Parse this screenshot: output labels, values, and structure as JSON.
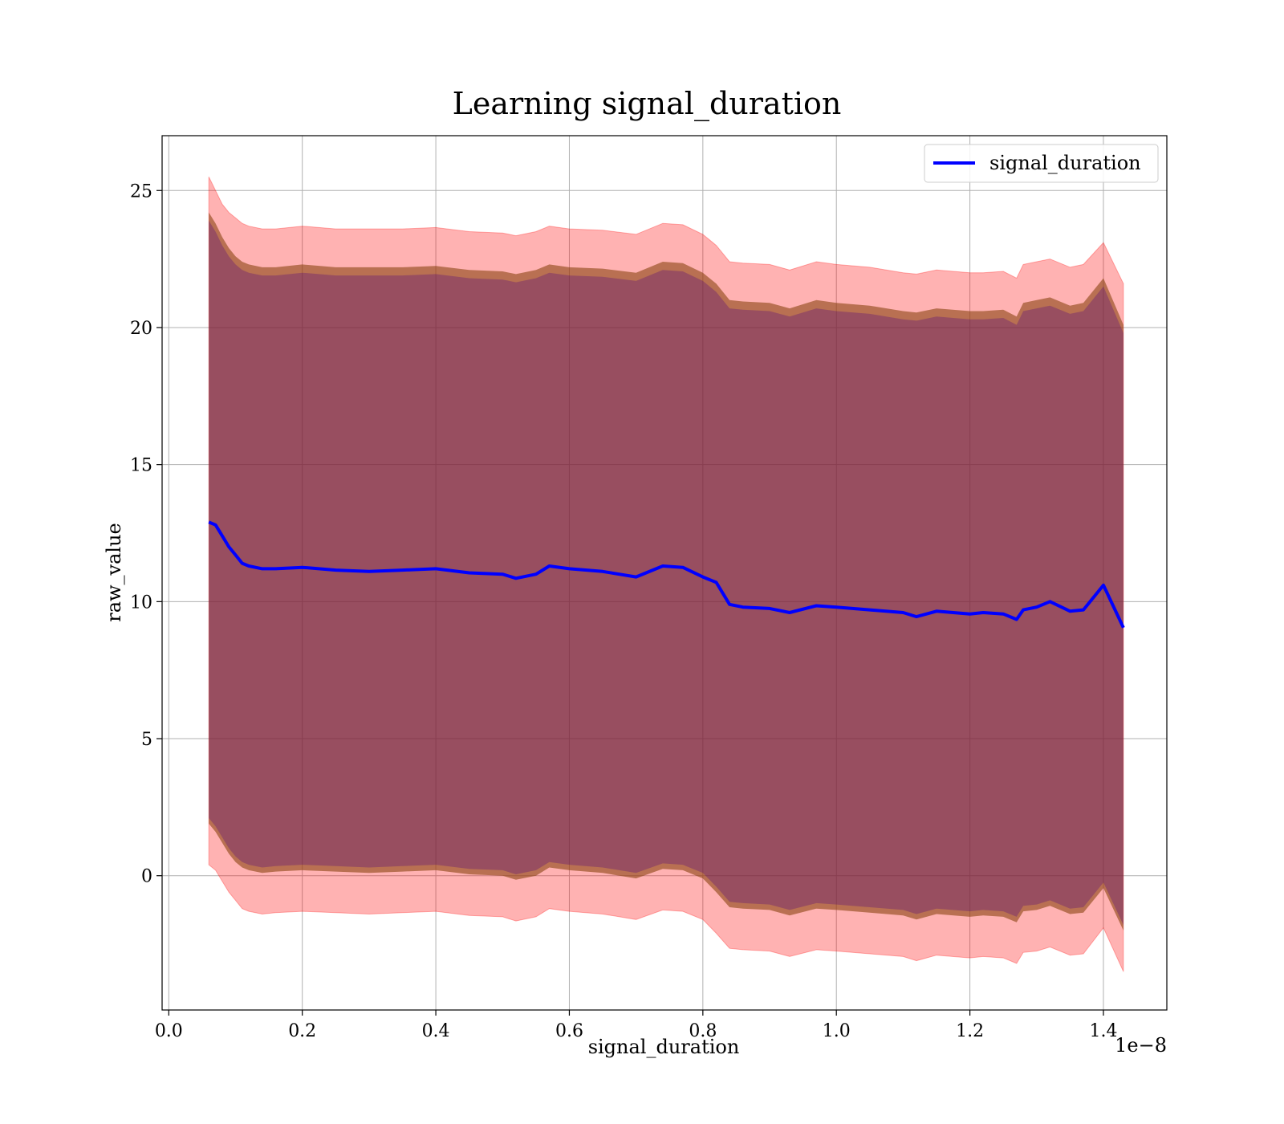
{
  "chart_data": {
    "type": "line",
    "title": "Learning signal_duration",
    "xlabel": "signal_duration",
    "ylabel": "raw_value",
    "x_multiplier_label": "1e−8",
    "x_scale": 1e-08,
    "xlim": [
      -1e-10,
      1.495e-08
    ],
    "ylim": [
      -4.9,
      27.0
    ],
    "x_ticks": [
      0.0,
      2e-09,
      4e-09,
      6e-09,
      8e-09,
      1e-08,
      1.2e-08,
      1.4e-08
    ],
    "x_tick_labels": [
      "0.0",
      "0.2",
      "0.4",
      "0.6",
      "0.8",
      "1.0",
      "1.2",
      "1.4"
    ],
    "y_ticks": [
      0,
      5,
      10,
      15,
      20,
      25
    ],
    "y_tick_labels": [
      "0",
      "5",
      "10",
      "15",
      "20",
      "25"
    ],
    "grid": true,
    "legend": {
      "position": "top-right",
      "entries": [
        "signal_duration"
      ]
    },
    "colors": {
      "line": "#0000ff",
      "band_outer": "#ff0000",
      "band_middle": "#8b4513",
      "band_inner": "#4b0082"
    },
    "series": [
      {
        "name": "signal_duration",
        "x": [
          6e-10,
          7e-10,
          8e-10,
          9e-10,
          1e-09,
          1.1e-09,
          1.2e-09,
          1.4e-09,
          1.6e-09,
          2e-09,
          2.5e-09,
          3e-09,
          3.5e-09,
          4e-09,
          4.5e-09,
          5e-09,
          5.2e-09,
          5.5e-09,
          5.7e-09,
          6e-09,
          6.5e-09,
          7e-09,
          7.4e-09,
          7.7e-09,
          8e-09,
          8.2e-09,
          8.4e-09,
          8.6e-09,
          9e-09,
          9.3e-09,
          9.7e-09,
          1e-08,
          1.05e-08,
          1.1e-08,
          1.12e-08,
          1.15e-08,
          1.2e-08,
          1.22e-08,
          1.25e-08,
          1.27e-08,
          1.28e-08,
          1.3e-08,
          1.32e-08,
          1.35e-08,
          1.37e-08,
          1.4e-08,
          1.43e-08
        ],
        "y": [
          12.9,
          12.8,
          12.4,
          12.0,
          11.7,
          11.4,
          11.3,
          11.2,
          11.2,
          11.25,
          11.15,
          11.1,
          11.15,
          11.2,
          11.05,
          11.0,
          10.85,
          11.0,
          11.3,
          11.2,
          11.1,
          10.9,
          11.3,
          11.25,
          10.9,
          10.7,
          9.9,
          9.8,
          9.75,
          9.6,
          9.85,
          9.8,
          9.7,
          9.6,
          9.45,
          9.65,
          9.55,
          9.6,
          9.55,
          9.35,
          9.7,
          9.8,
          10.0,
          9.65,
          9.7,
          10.6,
          9.05
        ],
        "band_outer_upper": [
          25.5,
          25.0,
          24.5,
          24.2,
          24.0,
          23.8,
          23.7,
          23.6,
          23.6,
          23.7,
          23.6,
          23.6,
          23.6,
          23.65,
          23.5,
          23.45,
          23.35,
          23.5,
          23.7,
          23.6,
          23.55,
          23.4,
          23.8,
          23.75,
          23.4,
          23.0,
          22.4,
          22.35,
          22.3,
          22.1,
          22.4,
          22.3,
          22.2,
          22.0,
          21.95,
          22.1,
          22.0,
          22.0,
          22.05,
          21.8,
          22.3,
          22.4,
          22.5,
          22.2,
          22.3,
          23.1,
          21.6
        ],
        "band_outer_lower": [
          0.4,
          0.2,
          -0.2,
          -0.6,
          -0.9,
          -1.2,
          -1.3,
          -1.4,
          -1.35,
          -1.3,
          -1.35,
          -1.4,
          -1.35,
          -1.3,
          -1.45,
          -1.5,
          -1.65,
          -1.5,
          -1.2,
          -1.3,
          -1.4,
          -1.6,
          -1.25,
          -1.3,
          -1.6,
          -2.1,
          -2.65,
          -2.7,
          -2.75,
          -2.95,
          -2.7,
          -2.75,
          -2.85,
          -2.95,
          -3.1,
          -2.9,
          -3.0,
          -2.95,
          -3.0,
          -3.2,
          -2.8,
          -2.75,
          -2.6,
          -2.9,
          -2.85,
          -1.9,
          -3.5
        ],
        "band_middle_upper": [
          24.2,
          23.8,
          23.3,
          22.9,
          22.6,
          22.4,
          22.3,
          22.2,
          22.2,
          22.3,
          22.2,
          22.2,
          22.2,
          22.25,
          22.1,
          22.05,
          21.95,
          22.1,
          22.3,
          22.2,
          22.15,
          22.0,
          22.4,
          22.35,
          22.0,
          21.6,
          21.0,
          20.95,
          20.9,
          20.7,
          21.0,
          20.9,
          20.8,
          20.6,
          20.55,
          20.7,
          20.6,
          20.6,
          20.65,
          20.4,
          20.9,
          21.0,
          21.1,
          20.8,
          20.9,
          21.8,
          20.1
        ],
        "band_middle_lower": [
          1.9,
          1.6,
          1.2,
          0.8,
          0.5,
          0.3,
          0.2,
          0.1,
          0.15,
          0.2,
          0.15,
          0.1,
          0.15,
          0.2,
          0.05,
          0.0,
          -0.15,
          0.0,
          0.3,
          0.2,
          0.1,
          -0.1,
          0.25,
          0.2,
          -0.1,
          -0.6,
          -1.15,
          -1.2,
          -1.25,
          -1.45,
          -1.2,
          -1.25,
          -1.35,
          -1.45,
          -1.6,
          -1.4,
          -1.5,
          -1.45,
          -1.5,
          -1.7,
          -1.3,
          -1.25,
          -1.1,
          -1.4,
          -1.35,
          -0.45,
          -2.0
        ],
        "band_inner_upper": [
          23.9,
          23.5,
          23.0,
          22.6,
          22.3,
          22.1,
          22.0,
          21.9,
          21.9,
          22.0,
          21.9,
          21.9,
          21.9,
          21.95,
          21.8,
          21.75,
          21.65,
          21.8,
          22.0,
          21.9,
          21.85,
          21.7,
          22.1,
          22.05,
          21.7,
          21.3,
          20.7,
          20.65,
          20.6,
          20.4,
          20.7,
          20.6,
          20.5,
          20.3,
          20.25,
          20.4,
          20.3,
          20.3,
          20.35,
          20.1,
          20.6,
          20.7,
          20.8,
          20.5,
          20.6,
          21.5,
          19.8
        ],
        "band_inner_lower": [
          2.1,
          1.8,
          1.4,
          1.0,
          0.7,
          0.5,
          0.4,
          0.3,
          0.35,
          0.4,
          0.35,
          0.3,
          0.35,
          0.4,
          0.25,
          0.2,
          0.05,
          0.2,
          0.5,
          0.4,
          0.3,
          0.1,
          0.45,
          0.4,
          0.1,
          -0.4,
          -0.95,
          -1.0,
          -1.05,
          -1.25,
          -1.0,
          -1.05,
          -1.15,
          -1.25,
          -1.4,
          -1.2,
          -1.3,
          -1.25,
          -1.3,
          -1.5,
          -1.1,
          -1.05,
          -0.9,
          -1.2,
          -1.15,
          -0.25,
          -1.8
        ]
      }
    ]
  }
}
